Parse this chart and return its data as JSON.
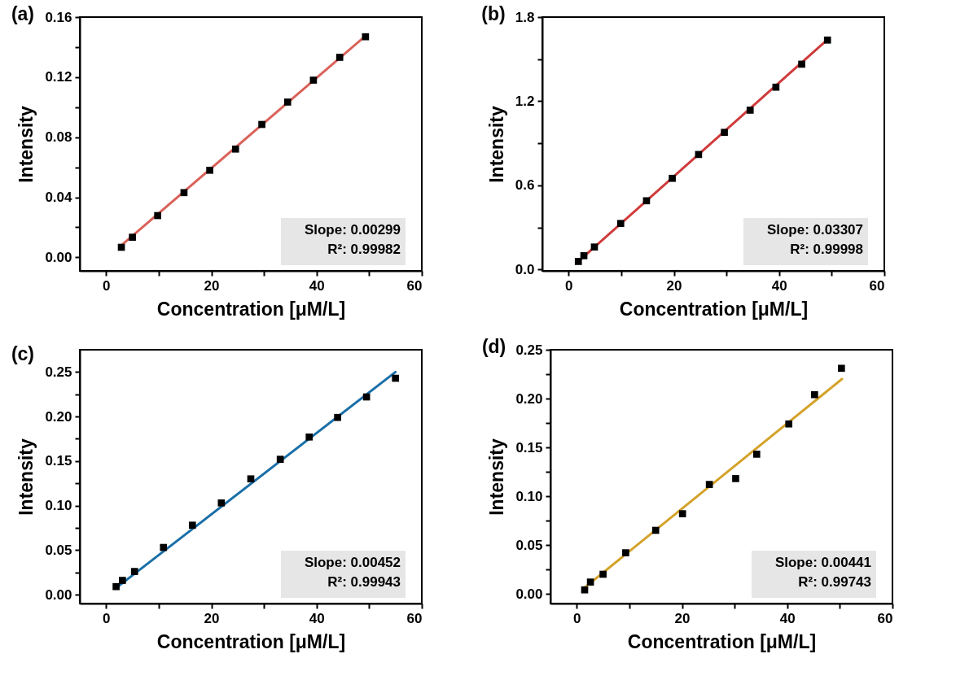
{
  "chart_data": [
    {
      "type": "scatter",
      "title": "(a)",
      "xlabel": "Concentration [μM/L]",
      "ylabel": "Intensity",
      "xlim": [
        -5,
        60
      ],
      "ylim": [
        -0.009,
        0.16
      ],
      "xticks": [
        0,
        {
          "value": 10,
          "label": null
        },
        20,
        {
          "value": 30,
          "label": null
        },
        40,
        {
          "value": 50,
          "label": null
        },
        60
      ],
      "yticks": [
        {
          "value": 0,
          "label": "0.00"
        },
        {
          "value": 0.02,
          "label": null
        },
        {
          "value": 0.04,
          "label": "0.04"
        },
        {
          "value": 0.06,
          "label": null
        },
        {
          "value": 0.08,
          "label": "0.08"
        },
        {
          "value": 0.1,
          "label": null
        },
        {
          "value": 0.12,
          "label": "0.12"
        },
        {
          "value": 0.14,
          "label": null
        },
        {
          "value": 0.16,
          "label": "0.16"
        }
      ],
      "annotations": [
        "Slope: 0.00299",
        "R²: 0.99982"
      ],
      "series": [
        {
          "type": "line",
          "color": "#d9625a",
          "x": [
            2.9,
            49.3
          ],
          "values": [
            0.008,
            0.1475
          ]
        },
        {
          "color": "#000000",
          "marker": "square",
          "x": [
            2.9,
            5,
            9.8,
            14.8,
            19.7,
            24.6,
            29.6,
            34.5,
            39.4,
            44.4,
            49.3
          ],
          "values": [
            0.0067,
            0.0134,
            0.0278,
            0.0431,
            0.058,
            0.0721,
            0.0885,
            0.1034,
            0.118,
            0.1332,
            0.1469
          ]
        }
      ]
    },
    {
      "type": "scatter",
      "title": "(b)",
      "xlabel": "Concentration [μM/L]",
      "ylabel": "Intensity",
      "xlim": [
        -5,
        60
      ],
      "ylim": [
        -0.01,
        1.8
      ],
      "xticks": [
        0,
        {
          "value": 10,
          "label": null
        },
        20,
        {
          "value": 30,
          "label": null
        },
        40,
        {
          "value": 50,
          "label": null
        },
        60
      ],
      "yticks": [
        {
          "value": 0,
          "label": "0.0"
        },
        {
          "value": 0.3,
          "label": null
        },
        0.6,
        {
          "value": 0.9,
          "label": null
        },
        1.2,
        {
          "value": 1.5,
          "label": null
        },
        1.8
      ],
      "annotations": [
        "Slope: 0.03307",
        "R²: 0.99998"
      ],
      "series": [
        {
          "type": "line",
          "color": "#d03b3b",
          "x": [
            1.85,
            49.2
          ],
          "values": [
            0.057,
            1.64
          ]
        },
        {
          "color": "#000000",
          "marker": "square",
          "x": [
            1.85,
            2.9,
            4.9,
            9.9,
            14.8,
            19.7,
            24.7,
            29.6,
            34.5,
            39.4,
            44.3,
            49.2
          ],
          "values": [
            0.057,
            0.098,
            0.16,
            0.328,
            0.49,
            0.65,
            0.82,
            0.978,
            1.136,
            1.3,
            1.464,
            1.636
          ]
        }
      ]
    },
    {
      "type": "scatter",
      "title": "(c)",
      "xlabel": "Concentration [μM/L]",
      "ylabel": "Intensity",
      "xlim": [
        -5,
        60
      ],
      "ylim": [
        -0.01,
        0.275
      ],
      "xticks": [
        0,
        {
          "value": 10,
          "label": null
        },
        20,
        {
          "value": 30,
          "label": null
        },
        40,
        {
          "value": 50,
          "label": null
        },
        60
      ],
      "yticks": [
        {
          "value": 0,
          "label": "0.00"
        },
        {
          "value": 0.025,
          "label": null
        },
        {
          "value": 0.05,
          "label": "0.05"
        },
        {
          "value": 0.075,
          "label": null
        },
        {
          "value": 0.1,
          "label": "0.10"
        },
        {
          "value": 0.125,
          "label": null
        },
        {
          "value": 0.15,
          "label": "0.15"
        },
        {
          "value": 0.175,
          "label": null
        },
        {
          "value": 0.2,
          "label": "0.20"
        },
        {
          "value": 0.225,
          "label": null
        },
        {
          "value": 0.25,
          "label": "0.25"
        }
      ],
      "annotations": [
        "Slope: 0.00452",
        "R²: 0.99943"
      ],
      "series": [
        {
          "type": "line",
          "color": "#1a6fa8",
          "x": [
            1.8,
            55
          ],
          "values": [
            0.007,
            0.25
          ]
        },
        {
          "color": "#000000",
          "marker": "square",
          "x": [
            1.9,
            3.1,
            5.4,
            10.9,
            16.4,
            21.9,
            27.5,
            33.1,
            38.6,
            44,
            49.5,
            55
          ],
          "values": [
            0.009,
            0.016,
            0.026,
            0.053,
            0.078,
            0.103,
            0.13,
            0.152,
            0.177,
            0.199,
            0.222,
            0.243
          ]
        }
      ]
    },
    {
      "type": "scatter",
      "title": "(d)",
      "xlabel": "Concentration [μM/L]",
      "ylabel": "Intensity",
      "xlim": [
        -5,
        60
      ],
      "ylim": [
        -0.01,
        0.25
      ],
      "xticks": [
        0,
        {
          "value": 10,
          "label": null
        },
        20,
        {
          "value": 30,
          "label": null
        },
        40,
        {
          "value": 50,
          "label": null
        },
        60
      ],
      "yticks": [
        {
          "value": 0,
          "label": "0.00"
        },
        {
          "value": 0.025,
          "label": null
        },
        {
          "value": 0.05,
          "label": "0.05"
        },
        {
          "value": 0.075,
          "label": null
        },
        {
          "value": 0.1,
          "label": "0.10"
        },
        {
          "value": 0.125,
          "label": null
        },
        {
          "value": 0.15,
          "label": "0.15"
        },
        {
          "value": 0.175,
          "label": null
        },
        {
          "value": 0.2,
          "label": "0.20"
        },
        {
          "value": 0.225,
          "label": null
        },
        {
          "value": 0.25,
          "label": "0.25"
        }
      ],
      "annotations": [
        "Slope: 0.00441",
        "R²: 0.99743"
      ],
      "series": [
        {
          "type": "line",
          "color": "#d4a22a",
          "x": [
            1.4,
            50.4
          ],
          "values": [
            0.006,
            0.22
          ]
        },
        {
          "color": "#000000",
          "marker": "square",
          "x": [
            1.5,
            2.6,
            5,
            9.3,
            15,
            20.1,
            25.2,
            30.2,
            34.2,
            40.3,
            45.2,
            50.3
          ],
          "values": [
            0.004,
            0.012,
            0.02,
            0.042,
            0.065,
            0.082,
            0.112,
            0.118,
            0.143,
            0.174,
            0.204,
            0.231
          ]
        }
      ]
    }
  ]
}
